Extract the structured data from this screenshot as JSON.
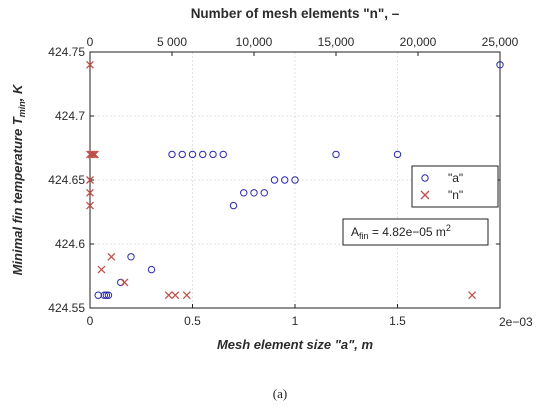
{
  "chart_data": {
    "type": "scatter",
    "ylabel_main": "Minimal fin temperature T",
    "ylabel_sub": "min",
    "ylabel_tail": ", K",
    "xlabel_bottom": "Mesh element size \"a\", m",
    "xlabel_top": "Number of mesh elements \"n\", –",
    "bottom_x_multiplier": "2e−03",
    "bottom_x_scale": 0.001,
    "xlim_bottom": [
      0,
      0.002
    ],
    "xlim_top": [
      0,
      25000
    ],
    "ylim": [
      424.55,
      424.75
    ],
    "y_ticks": [
      "424.55",
      "424.6",
      "424.65",
      "424.7",
      "424.75"
    ],
    "y_tick_values": [
      424.55,
      424.6,
      424.65,
      424.7,
      424.75
    ],
    "x_bottom_ticks": [
      "0",
      "0.5",
      "1",
      "1.5"
    ],
    "x_bottom_tick_values": [
      0,
      0.0005,
      0.001,
      0.0015
    ],
    "x_top_ticks": [
      "0",
      "5 000",
      "10,000",
      "15,000",
      "20,000",
      "25,000"
    ],
    "x_top_tick_values": [
      0,
      5000,
      10000,
      15000,
      20000,
      25000
    ],
    "grid": true,
    "legend_position": "right",
    "series": [
      {
        "name": "\"a\"",
        "marker": "circle",
        "color": "#2a2aa8",
        "axis": "bottom",
        "points": [
          [
            4e-05,
            424.56
          ],
          [
            7e-05,
            424.56
          ],
          [
            8e-05,
            424.56
          ],
          [
            9e-05,
            424.56
          ],
          [
            0.00015,
            424.57
          ],
          [
            0.0002,
            424.59
          ],
          [
            0.0003,
            424.58
          ],
          [
            0.0004,
            424.67
          ],
          [
            0.00045,
            424.67
          ],
          [
            0.0005,
            424.67
          ],
          [
            0.00055,
            424.67
          ],
          [
            0.0006,
            424.67
          ],
          [
            0.00065,
            424.67
          ],
          [
            0.0007,
            424.63
          ],
          [
            0.00075,
            424.64
          ],
          [
            0.0008,
            424.64
          ],
          [
            0.00085,
            424.64
          ],
          [
            0.0009,
            424.65
          ],
          [
            0.00095,
            424.65
          ],
          [
            0.001,
            424.65
          ],
          [
            0.0012,
            424.67
          ],
          [
            0.0015,
            424.67
          ],
          [
            0.002,
            424.74
          ]
        ]
      },
      {
        "name": "\"n\"",
        "marker": "x",
        "color": "#c0504d",
        "axis": "top",
        "points": [
          [
            0,
            424.74
          ],
          [
            0,
            424.67
          ],
          [
            100,
            424.67
          ],
          [
            200,
            424.67
          ],
          [
            300,
            424.67
          ],
          [
            0,
            424.65
          ],
          [
            0,
            424.64
          ],
          [
            0,
            424.63
          ],
          [
            700,
            424.58
          ],
          [
            1300,
            424.59
          ],
          [
            2100,
            424.57
          ],
          [
            4800,
            424.56
          ],
          [
            5200,
            424.56
          ],
          [
            5900,
            424.56
          ],
          [
            23300,
            424.56
          ]
        ]
      }
    ],
    "annotation": {
      "prefix": "A",
      "subscript": "fin",
      "value_text": " = 4.82e−05 m",
      "superscript": "2"
    }
  },
  "caption": "(a)"
}
